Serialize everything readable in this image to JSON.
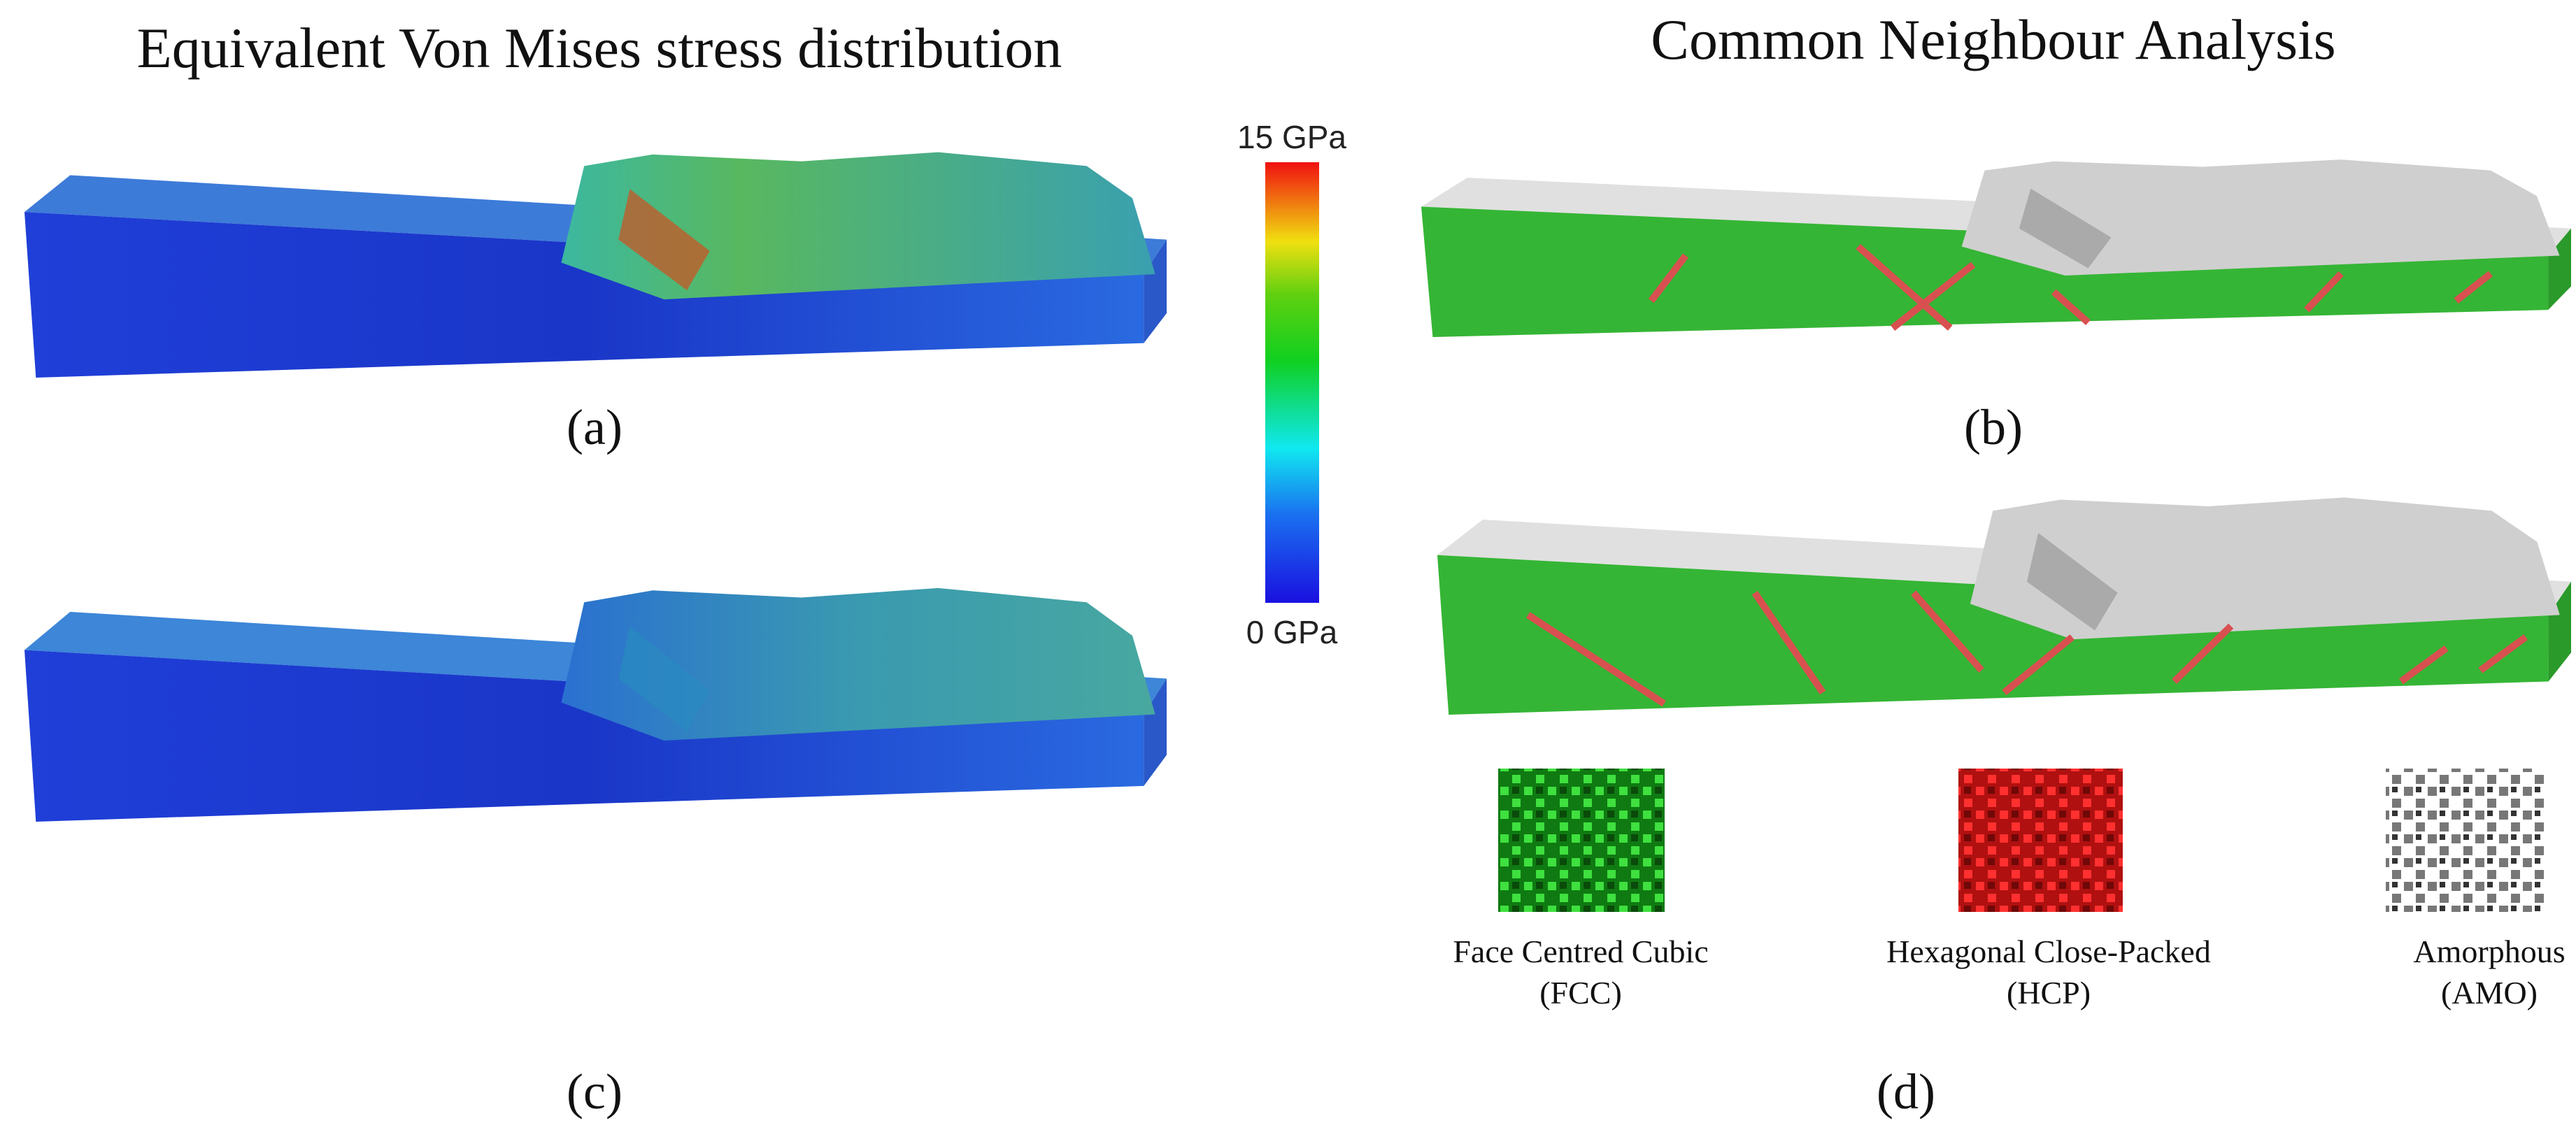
{
  "panels": [
    {
      "title": "Equivalent Von Mises stress distribution"
    },
    {
      "title": "Common Neighbour Analysis"
    }
  ],
  "labels": [
    "(a)",
    "(b)",
    "(c)",
    "(d)"
  ],
  "colorbar": {
    "max_label": "15 GPa",
    "min_label": "0 GPa"
  },
  "legend": [
    {
      "name": "Face Centred Cubic",
      "abbr": "(FCC)"
    },
    {
      "name": "Hexagonal Close-Packed",
      "abbr": "(HCP)"
    },
    {
      "name": "Amorphous",
      "abbr": "(AMO)"
    }
  ]
}
